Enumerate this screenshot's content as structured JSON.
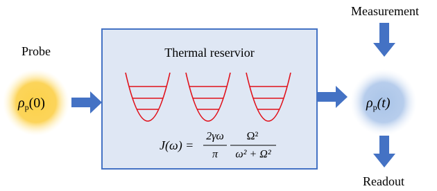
{
  "probe": {
    "label": "Probe",
    "symbol": "ρ",
    "subscript": "p",
    "argument": "(0)"
  },
  "reservoir": {
    "title": "Thermal reservior",
    "formula": {
      "lhs": "J(ω) =",
      "num1": "2γω",
      "den1": "π",
      "num2": "Ω²",
      "den2": "ω² + Ω²"
    }
  },
  "state": {
    "symbol": "ρ",
    "subscript": "p",
    "argument": "(t)"
  },
  "measurement": "Measurement",
  "readout": "Readout"
}
